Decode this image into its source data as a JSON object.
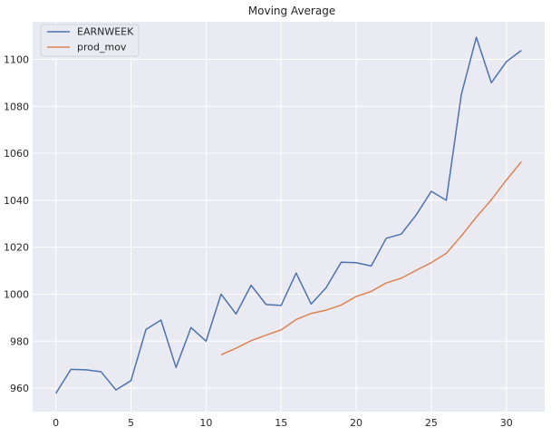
{
  "chart_data": {
    "type": "line",
    "title": "Moving Average",
    "xlabel": "",
    "ylabel": "",
    "xlim": [
      -1.55,
      32.55
    ],
    "ylim": [
      950,
      1116
    ],
    "xticks": [
      0,
      5,
      10,
      15,
      20,
      25,
      30
    ],
    "yticks": [
      960,
      980,
      1000,
      1020,
      1040,
      1060,
      1080,
      1100
    ],
    "grid": true,
    "legend_position": "top-left",
    "series": [
      {
        "name": "EARNWEEK",
        "color": "#4c72b0",
        "x": [
          0,
          1,
          2,
          3,
          4,
          5,
          6,
          7,
          8,
          9,
          10,
          11,
          12,
          13,
          14,
          15,
          16,
          17,
          18,
          19,
          20,
          21,
          22,
          23,
          24,
          25,
          26,
          27,
          28,
          29,
          30,
          31
        ],
        "values": [
          957.8,
          968,
          967.8,
          967,
          959.2,
          963.2,
          985,
          989,
          968.8,
          985.8,
          980,
          1000,
          991.6,
          1003.8,
          995.6,
          995.2,
          1009,
          995.8,
          1002.8,
          1013.6,
          1013.4,
          1012,
          1023.8,
          1025.6,
          1033.8,
          1043.8,
          1040,
          1085,
          1109.4,
          1090,
          1099,
          1103.8
        ]
      },
      {
        "name": "prod_mov",
        "color": "#dd8452",
        "x": [
          11,
          12,
          13,
          14,
          15,
          16,
          17,
          18,
          19,
          20,
          21,
          22,
          23,
          24,
          25,
          26,
          27,
          28,
          29,
          30,
          31
        ],
        "values": [
          974.2,
          977,
          980.2,
          982.6,
          984.8,
          989.2,
          991.8,
          993.2,
          995.4,
          999,
          1001.2,
          1004.8,
          1006.8,
          1010.2,
          1013.4,
          1017.4,
          1024.8,
          1032.8,
          1040.2,
          1048.6,
          1056.4
        ]
      }
    ]
  }
}
